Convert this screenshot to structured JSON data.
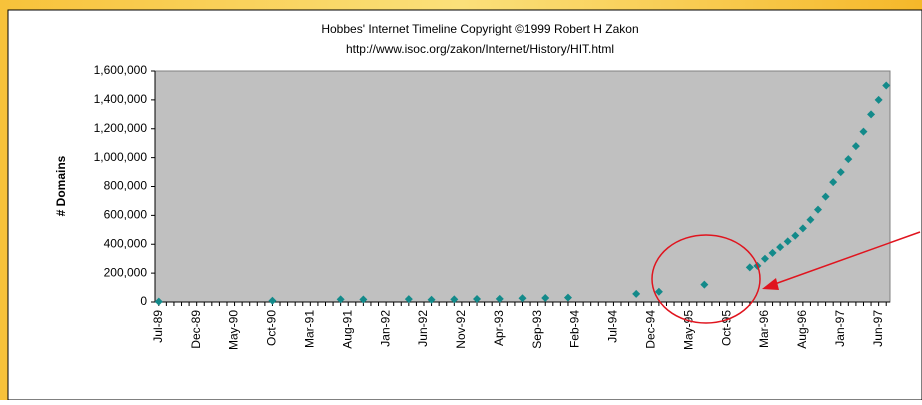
{
  "chart_data": {
    "type": "scatter",
    "title": "Hobbes' Internet Timeline Copyright ©1999 Robert H Zakon",
    "subtitle": "http://www.isoc.org/zakon/Internet/History/HIT.html",
    "y_label": "# Domains",
    "color": "#138a8a",
    "categories": [
      "Jul-89",
      null,
      null,
      null,
      null,
      "Dec-89",
      null,
      null,
      null,
      null,
      "May-90",
      null,
      null,
      null,
      null,
      "Oct-90",
      null,
      null,
      null,
      null,
      "Mar-91",
      null,
      null,
      null,
      null,
      "Aug-91",
      null,
      null,
      null,
      null,
      "Jan-92",
      null,
      null,
      null,
      null,
      "Jun-92",
      null,
      null,
      null,
      null,
      "Nov-92",
      null,
      null,
      null,
      null,
      "Apr-93",
      null,
      null,
      null,
      null,
      "Sep-93",
      null,
      null,
      null,
      null,
      "Feb-94",
      null,
      null,
      null,
      null,
      "Jul-94",
      null,
      null,
      null,
      null,
      "Dec-94",
      null,
      null,
      null,
      null,
      "May-95",
      null,
      null,
      null,
      null,
      "Oct-95",
      null,
      null,
      null,
      null,
      "Mar-96",
      null,
      null,
      null,
      null,
      "Aug-96",
      null,
      null,
      null,
      null,
      "Jan-97",
      null,
      null,
      null,
      null,
      "Jun-97",
      null
    ],
    "values": [
      3000,
      null,
      null,
      null,
      null,
      null,
      null,
      null,
      null,
      null,
      null,
      null,
      null,
      null,
      null,
      9000,
      null,
      null,
      null,
      null,
      null,
      null,
      null,
      null,
      18000,
      null,
      null,
      17000,
      null,
      null,
      null,
      null,
      null,
      20000,
      null,
      null,
      16000,
      null,
      null,
      18000,
      null,
      null,
      21000,
      null,
      null,
      22000,
      null,
      null,
      26000,
      null,
      null,
      28000,
      null,
      null,
      30000,
      null,
      null,
      null,
      null,
      null,
      null,
      null,
      null,
      56000,
      null,
      null,
      71000,
      null,
      null,
      null,
      null,
      null,
      120000,
      null,
      null,
      null,
      null,
      null,
      240000,
      250000,
      300000,
      340000,
      380000,
      420000,
      460000,
      510000,
      570000,
      640000,
      730000,
      830000,
      900000,
      990000,
      1080000,
      1180000,
      1300000,
      1400000,
      1500000
    ],
    "ylim": [
      0,
      1600000
    ],
    "yticks": [
      0,
      {
        "value": 200000,
        "label": "200,000"
      },
      {
        "value": 400000,
        "label": "400,000"
      },
      {
        "value": 600000,
        "label": "600,000"
      },
      {
        "value": 800000,
        "label": "800,000"
      },
      {
        "value": 1000000,
        "label": "1,000,000"
      },
      {
        "value": 1200000,
        "label": "1,200,000"
      },
      {
        "value": 1400000,
        "label": "1,400,000"
      },
      {
        "value": 1600000,
        "label": "1,600,000"
      }
    ],
    "grid": false
  }
}
